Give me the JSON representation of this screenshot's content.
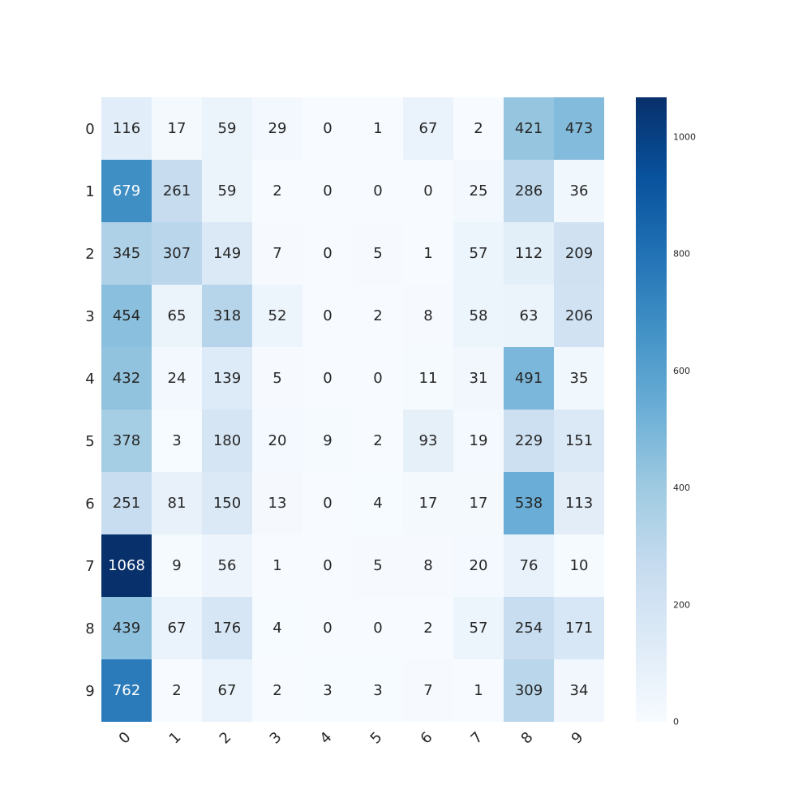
{
  "chart_data": {
    "type": "heatmap",
    "title": "",
    "xlabel": "",
    "ylabel": "",
    "x_categories": [
      "0",
      "1",
      "2",
      "3",
      "4",
      "5",
      "6",
      "7",
      "8",
      "9"
    ],
    "y_categories": [
      "0",
      "1",
      "2",
      "3",
      "4",
      "5",
      "6",
      "7",
      "8",
      "9"
    ],
    "values": [
      [
        116,
        17,
        59,
        29,
        0,
        1,
        67,
        2,
        421,
        473
      ],
      [
        679,
        261,
        59,
        2,
        0,
        0,
        0,
        25,
        286,
        36
      ],
      [
        345,
        307,
        149,
        7,
        0,
        5,
        1,
        57,
        112,
        209
      ],
      [
        454,
        65,
        318,
        52,
        0,
        2,
        8,
        58,
        63,
        206
      ],
      [
        432,
        24,
        139,
        5,
        0,
        0,
        11,
        31,
        491,
        35
      ],
      [
        378,
        3,
        180,
        20,
        9,
        2,
        93,
        19,
        229,
        151
      ],
      [
        251,
        81,
        150,
        13,
        0,
        4,
        17,
        17,
        538,
        113
      ],
      [
        1068,
        9,
        56,
        1,
        0,
        5,
        8,
        20,
        76,
        10
      ],
      [
        439,
        67,
        176,
        4,
        0,
        0,
        2,
        57,
        254,
        171
      ],
      [
        762,
        2,
        67,
        2,
        3,
        3,
        7,
        1,
        309,
        34
      ]
    ],
    "colormap": "Blues",
    "vmin": 0,
    "vmax": 1068,
    "x_tick_rotation_deg": 45,
    "colorbar": {
      "ticks": [
        0,
        200,
        400,
        600,
        800,
        1000
      ],
      "tick_labels": [
        "0",
        "200",
        "400",
        "600",
        "800",
        "1000"
      ]
    },
    "grid": false,
    "legend": "colorbar-right"
  }
}
